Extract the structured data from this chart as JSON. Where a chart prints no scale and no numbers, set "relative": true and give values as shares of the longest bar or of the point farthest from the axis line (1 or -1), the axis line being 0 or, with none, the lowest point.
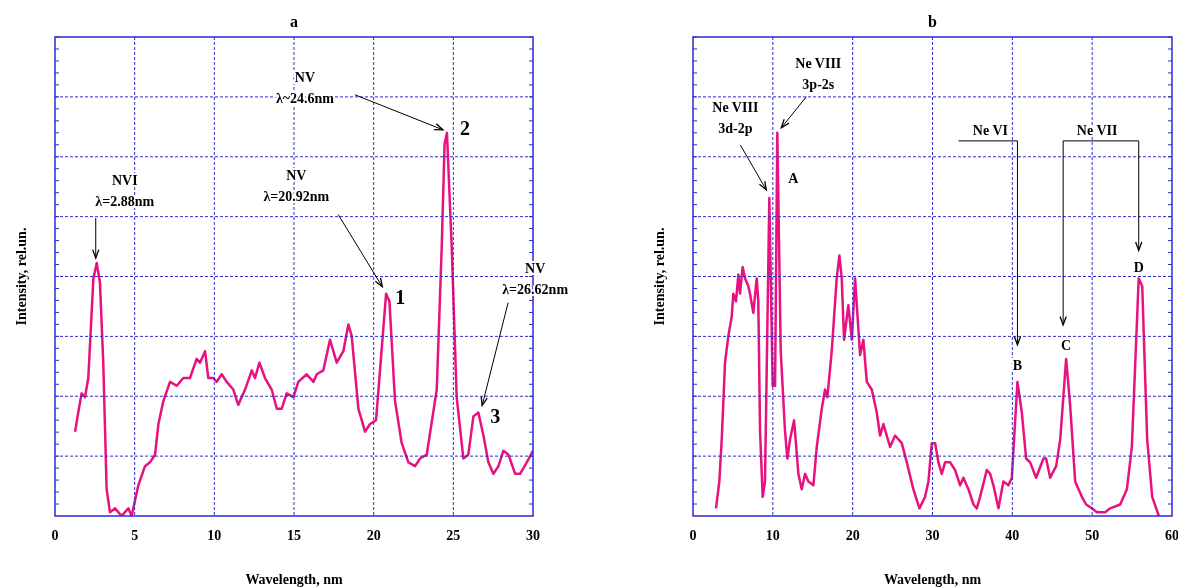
{
  "chart_data": [
    {
      "type": "line",
      "title": "a",
      "xlabel": "Wavelength, nm",
      "ylabel": "Intensity, rel.un.",
      "relative": true,
      "color": "#e8127f",
      "grid": true,
      "xlim": [
        0,
        30
      ],
      "xticks": [
        0,
        5,
        10,
        15,
        20,
        25,
        30
      ],
      "x": [
        1.26,
        1.46,
        1.67,
        1.88,
        2.09,
        2.41,
        2.62,
        2.82,
        3.03,
        3.24,
        3.45,
        3.77,
        4.18,
        4.6,
        4.81,
        5.23,
        5.65,
        5.96,
        6.28,
        6.49,
        6.8,
        7.22,
        7.64,
        8.05,
        8.47,
        8.89,
        9.1,
        9.42,
        9.62,
        9.94,
        10.15,
        10.46,
        10.78,
        11.19,
        11.5,
        11.93,
        12.35,
        12.55,
        12.83,
        13.18,
        13.6,
        13.92,
        14.23,
        14.54,
        14.96,
        15.27,
        15.8,
        16.22,
        16.43,
        16.84,
        17.26,
        17.68,
        18.1,
        18.41,
        18.62,
        19.04,
        19.46,
        19.77,
        20.15,
        20.36,
        20.78,
        20.99,
        21.34,
        21.76,
        22.18,
        22.6,
        22.91,
        23.33,
        23.96,
        24.27,
        24.45,
        24.6,
        24.9,
        25.21,
        25.63,
        25.94,
        26.26,
        26.57,
        26.89,
        27.2,
        27.51,
        27.83,
        28.14,
        28.46,
        28.88,
        29.19,
        29.61,
        30
      ],
      "values": [
        0.22,
        0.27,
        0.32,
        0.31,
        0.36,
        0.62,
        0.66,
        0.61,
        0.4,
        0.07,
        0.01,
        0.02,
        0,
        0.02,
        0,
        0.08,
        0.13,
        0.14,
        0.16,
        0.24,
        0.3,
        0.35,
        0.34,
        0.36,
        0.36,
        0.41,
        0.4,
        0.43,
        0.36,
        0.36,
        0.35,
        0.37,
        0.35,
        0.33,
        0.29,
        0.33,
        0.38,
        0.36,
        0.4,
        0.36,
        0.33,
        0.28,
        0.28,
        0.32,
        0.31,
        0.35,
        0.37,
        0.35,
        0.37,
        0.38,
        0.46,
        0.4,
        0.43,
        0.5,
        0.47,
        0.28,
        0.22,
        0.24,
        0.25,
        0.36,
        0.58,
        0.56,
        0.3,
        0.19,
        0.14,
        0.13,
        0.15,
        0.16,
        0.33,
        0.7,
        0.97,
        1,
        0.7,
        0.31,
        0.15,
        0.16,
        0.26,
        0.27,
        0.21,
        0.14,
        0.11,
        0.13,
        0.17,
        0.16,
        0.11,
        0.11,
        0.14,
        0.17
      ],
      "annotations": [
        "NVI\nλ=2.88nm",
        "NV\nλ=20.92nm",
        {
          "text": "1",
          "x": 20.92,
          "y": 0.58
        },
        "NV\nλ~24.6nm",
        {
          "text": "2",
          "x": 24.6,
          "y": 1
        },
        {
          "text": "NV\nλ=26.62nm",
          "x": 26.62,
          "y": 0.27
        },
        {
          "text": "3",
          "x": 26.62,
          "y": 0.27
        }
      ]
    },
    {
      "type": "line",
      "title": "b",
      "xlabel": "Wavelength, nm",
      "ylabel": "Intensity, rel.un.",
      "relative": true,
      "color": "#e8127f",
      "grid": true,
      "xlim": [
        0,
        60
      ],
      "xticks": [
        0,
        10,
        20,
        30,
        40,
        50,
        60
      ],
      "x": [
        2.88,
        3.3,
        3.6,
        4.01,
        4.43,
        4.85,
        5.05,
        5.39,
        5.68,
        5.89,
        6.22,
        6.52,
        6.93,
        7.14,
        7.56,
        7.98,
        8.18,
        8.4,
        8.73,
        9.02,
        9.56,
        9.98,
        10.28,
        10.56,
        10.99,
        11.53,
        11.82,
        12.16,
        12.66,
        13.2,
        13.62,
        14.04,
        14.45,
        15.08,
        15.5,
        16.13,
        16.54,
        16.83,
        17.38,
        18.0,
        18.34,
        18.63,
        18.92,
        19.46,
        19.89,
        20.3,
        20.93,
        21.34,
        21.77,
        22.39,
        23.02,
        23.43,
        23.85,
        24.69,
        25.31,
        26.15,
        26.78,
        27.6,
        28.36,
        29.07,
        29.49,
        29.91,
        30.33,
        30.74,
        31.16,
        31.58,
        32.21,
        32.83,
        33.46,
        33.87,
        34.5,
        35.13,
        35.55,
        35.96,
        36.8,
        37.22,
        37.63,
        38.26,
        38.88,
        39.51,
        39.94,
        40.64,
        41.19,
        41.73,
        42.23,
        42.98,
        43.9,
        44.23,
        44.74,
        45.49,
        46,
        46.74,
        47.24,
        47.87,
        48.71,
        49.25,
        49.96,
        50.59,
        51.63,
        52.26,
        53.51,
        54.35,
        54.97,
        55.83,
        56.27,
        56.89,
        57.52,
        58.35
      ],
      "values": [
        0.02,
        0.09,
        0.2,
        0.4,
        0.47,
        0.52,
        0.58,
        0.56,
        0.63,
        0.58,
        0.65,
        0.62,
        0.6,
        0.58,
        0.53,
        0.62,
        0.56,
        0.22,
        0.05,
        0.09,
        0.83,
        0.34,
        0.34,
        1,
        0.43,
        0.22,
        0.15,
        0.2,
        0.25,
        0.11,
        0.07,
        0.11,
        0.09,
        0.08,
        0.18,
        0.28,
        0.33,
        0.31,
        0.43,
        0.62,
        0.68,
        0.62,
        0.46,
        0.55,
        0.46,
        0.62,
        0.42,
        0.46,
        0.35,
        0.33,
        0.27,
        0.21,
        0.24,
        0.18,
        0.21,
        0.19,
        0.14,
        0.07,
        0.02,
        0.05,
        0.09,
        0.19,
        0.19,
        0.14,
        0.11,
        0.14,
        0.14,
        0.12,
        0.08,
        0.1,
        0.07,
        0.03,
        0.02,
        0.05,
        0.12,
        0.11,
        0.08,
        0.02,
        0.09,
        0.08,
        0.1,
        0.35,
        0.27,
        0.15,
        0.14,
        0.1,
        0.15,
        0.15,
        0.1,
        0.13,
        0.2,
        0.41,
        0.29,
        0.09,
        0.05,
        0.03,
        0.02,
        0.01,
        0.01,
        0.02,
        0.03,
        0.07,
        0.18,
        0.62,
        0.6,
        0.2,
        0.05,
        0
      ],
      "annotations": [
        {
          "text": "Ne VIII\n3d-2p",
          "x": 9.56,
          "y": 0.83
        },
        {
          "text": "Ne VIII\n3p-2s",
          "x": 10.56,
          "y": 1
        },
        {
          "text": "A",
          "x": 10.56,
          "y": 1
        },
        "Ne VI",
        {
          "text": "B",
          "x": 40.64,
          "y": 0.35
        },
        "Ne VII",
        {
          "text": "C",
          "x": 46.74,
          "y": 0.41
        },
        {
          "text": "D",
          "x": 55.83,
          "y": 0.62
        }
      ]
    }
  ]
}
